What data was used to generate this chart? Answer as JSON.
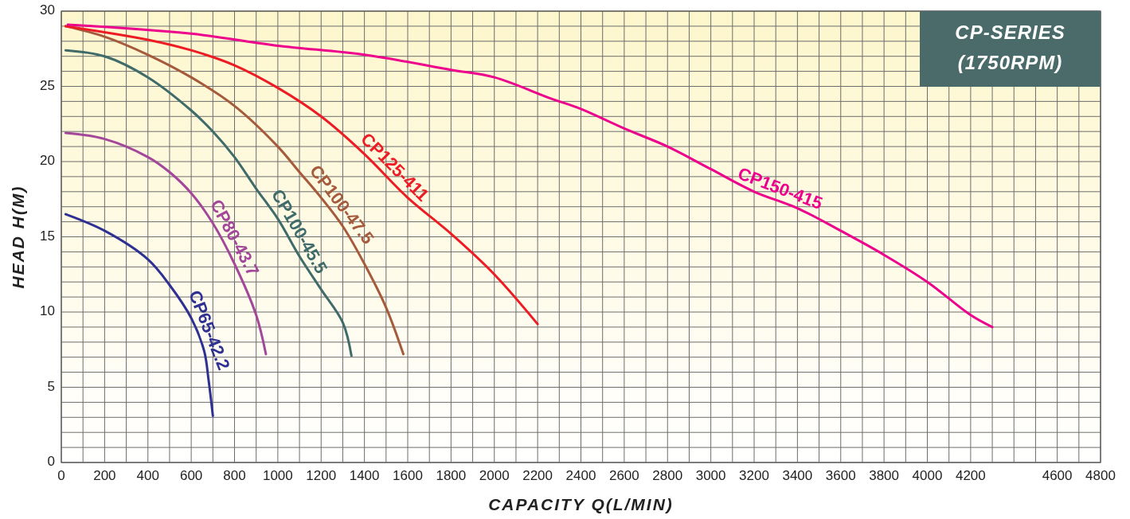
{
  "chart_data": {
    "type": "line",
    "title": "CP-SERIES",
    "subtitle": "(1750RPM)",
    "xlabel": "CAPACITY Q(L/MIN)",
    "ylabel": "HEAD H(M)",
    "xlim": [
      0,
      4800
    ],
    "ylim": [
      0,
      30
    ],
    "xticks": [
      0,
      {
        "value": 100,
        "label": null
      },
      200,
      {
        "value": 300,
        "label": null
      },
      400,
      {
        "value": 500,
        "label": null
      },
      600,
      {
        "value": 700,
        "label": null
      },
      800,
      {
        "value": 900,
        "label": null
      },
      1000,
      {
        "value": 1100,
        "label": null
      },
      1200,
      {
        "value": 1300,
        "label": null
      },
      1400,
      {
        "value": 1500,
        "label": null
      },
      1600,
      {
        "value": 1700,
        "label": null
      },
      1800,
      {
        "value": 1900,
        "label": null
      },
      2000,
      {
        "value": 2100,
        "label": null
      },
      2200,
      {
        "value": 2300,
        "label": null
      },
      2400,
      {
        "value": 2500,
        "label": null
      },
      2600,
      {
        "value": 2700,
        "label": null
      },
      2800,
      {
        "value": 2900,
        "label": null
      },
      3000,
      {
        "value": 3100,
        "label": null
      },
      3200,
      {
        "value": 3300,
        "label": null
      },
      3400,
      {
        "value": 3500,
        "label": null
      },
      3600,
      {
        "value": 3700,
        "label": null
      },
      3800,
      {
        "value": 3900,
        "label": null
      },
      4000,
      {
        "value": 4100,
        "label": null
      },
      4200,
      {
        "value": 4300,
        "label": null
      },
      {
        "value": 4400,
        "label": null
      },
      {
        "value": 4500,
        "label": null
      },
      4600,
      {
        "value": 4700,
        "label": null
      },
      4800
    ],
    "yticks": [
      0,
      {
        "value": 1,
        "label": null
      },
      {
        "value": 2,
        "label": null
      },
      {
        "value": 3,
        "label": null
      },
      {
        "value": 4,
        "label": null
      },
      5,
      {
        "value": 6,
        "label": null
      },
      {
        "value": 7,
        "label": null
      },
      {
        "value": 8,
        "label": null
      },
      {
        "value": 9,
        "label": null
      },
      10,
      {
        "value": 11,
        "label": null
      },
      {
        "value": 12,
        "label": null
      },
      {
        "value": 13,
        "label": null
      },
      {
        "value": 14,
        "label": null
      },
      15,
      {
        "value": 16,
        "label": null
      },
      {
        "value": 17,
        "label": null
      },
      {
        "value": 18,
        "label": null
      },
      {
        "value": 19,
        "label": null
      },
      20,
      {
        "value": 21,
        "label": null
      },
      {
        "value": 22,
        "label": null
      },
      {
        "value": 23,
        "label": null
      },
      {
        "value": 24,
        "label": null
      },
      25,
      {
        "value": 26,
        "label": null
      },
      {
        "value": 27,
        "label": null
      },
      {
        "value": 28,
        "label": null
      },
      {
        "value": 29,
        "label": null
      },
      30
    ],
    "grid": true,
    "line_style": "solid",
    "marker": "none",
    "series": [
      {
        "name": "CP65-42.2",
        "color": "#2e3192",
        "x": [
          20,
          200,
          400,
          500,
          600,
          660,
          680,
          700
        ],
        "values": [
          16.5,
          15.4,
          13.5,
          11.8,
          9.6,
          7.4,
          5.5,
          3.1
        ]
      },
      {
        "name": "CP80-43.7",
        "color": "#a3479a",
        "x": [
          20,
          200,
          400,
          500,
          600,
          700,
          800,
          900,
          945
        ],
        "values": [
          21.9,
          21.5,
          20.3,
          19.3,
          17.9,
          15.9,
          13.2,
          9.8,
          7.2
        ]
      },
      {
        "name": "CP100-45.5",
        "color": "#3f6b6a",
        "x": [
          20,
          200,
          400,
          600,
          700,
          800,
          900,
          1000,
          1100,
          1200,
          1300,
          1340
        ],
        "values": [
          27.4,
          27.0,
          25.6,
          23.4,
          22.0,
          20.3,
          18.2,
          16.2,
          13.7,
          11.5,
          9.3,
          7.1
        ]
      },
      {
        "name": "CP100-47.5",
        "color": "#a65a3c",
        "x": [
          20,
          200,
          400,
          600,
          800,
          1000,
          1100,
          1200,
          1300,
          1400,
          1500,
          1580
        ],
        "values": [
          29.0,
          28.3,
          27.1,
          25.6,
          23.7,
          21.0,
          19.3,
          17.6,
          15.7,
          13.2,
          10.3,
          7.2
        ]
      },
      {
        "name": "CP125-411",
        "color": "#ed1c24",
        "x": [
          20,
          400,
          600,
          800,
          1000,
          1200,
          1400,
          1600,
          1800,
          2000,
          2200
        ],
        "values": [
          29.0,
          28.1,
          27.4,
          26.4,
          24.9,
          23.0,
          20.5,
          17.6,
          15.2,
          12.5,
          9.2
        ]
      },
      {
        "name": "CP150-415",
        "color": "#ec008c",
        "x": [
          30,
          600,
          1000,
          1400,
          1800,
          2000,
          2260,
          2400,
          2600,
          2800,
          3000,
          3200,
          3400,
          3600,
          3800,
          4000,
          4200,
          4300
        ],
        "values": [
          29.1,
          28.5,
          27.7,
          27.1,
          26.1,
          25.6,
          24.2,
          23.5,
          22.2,
          21.0,
          19.5,
          18.0,
          16.9,
          15.4,
          13.8,
          12.0,
          9.8,
          9.0
        ]
      }
    ]
  }
}
